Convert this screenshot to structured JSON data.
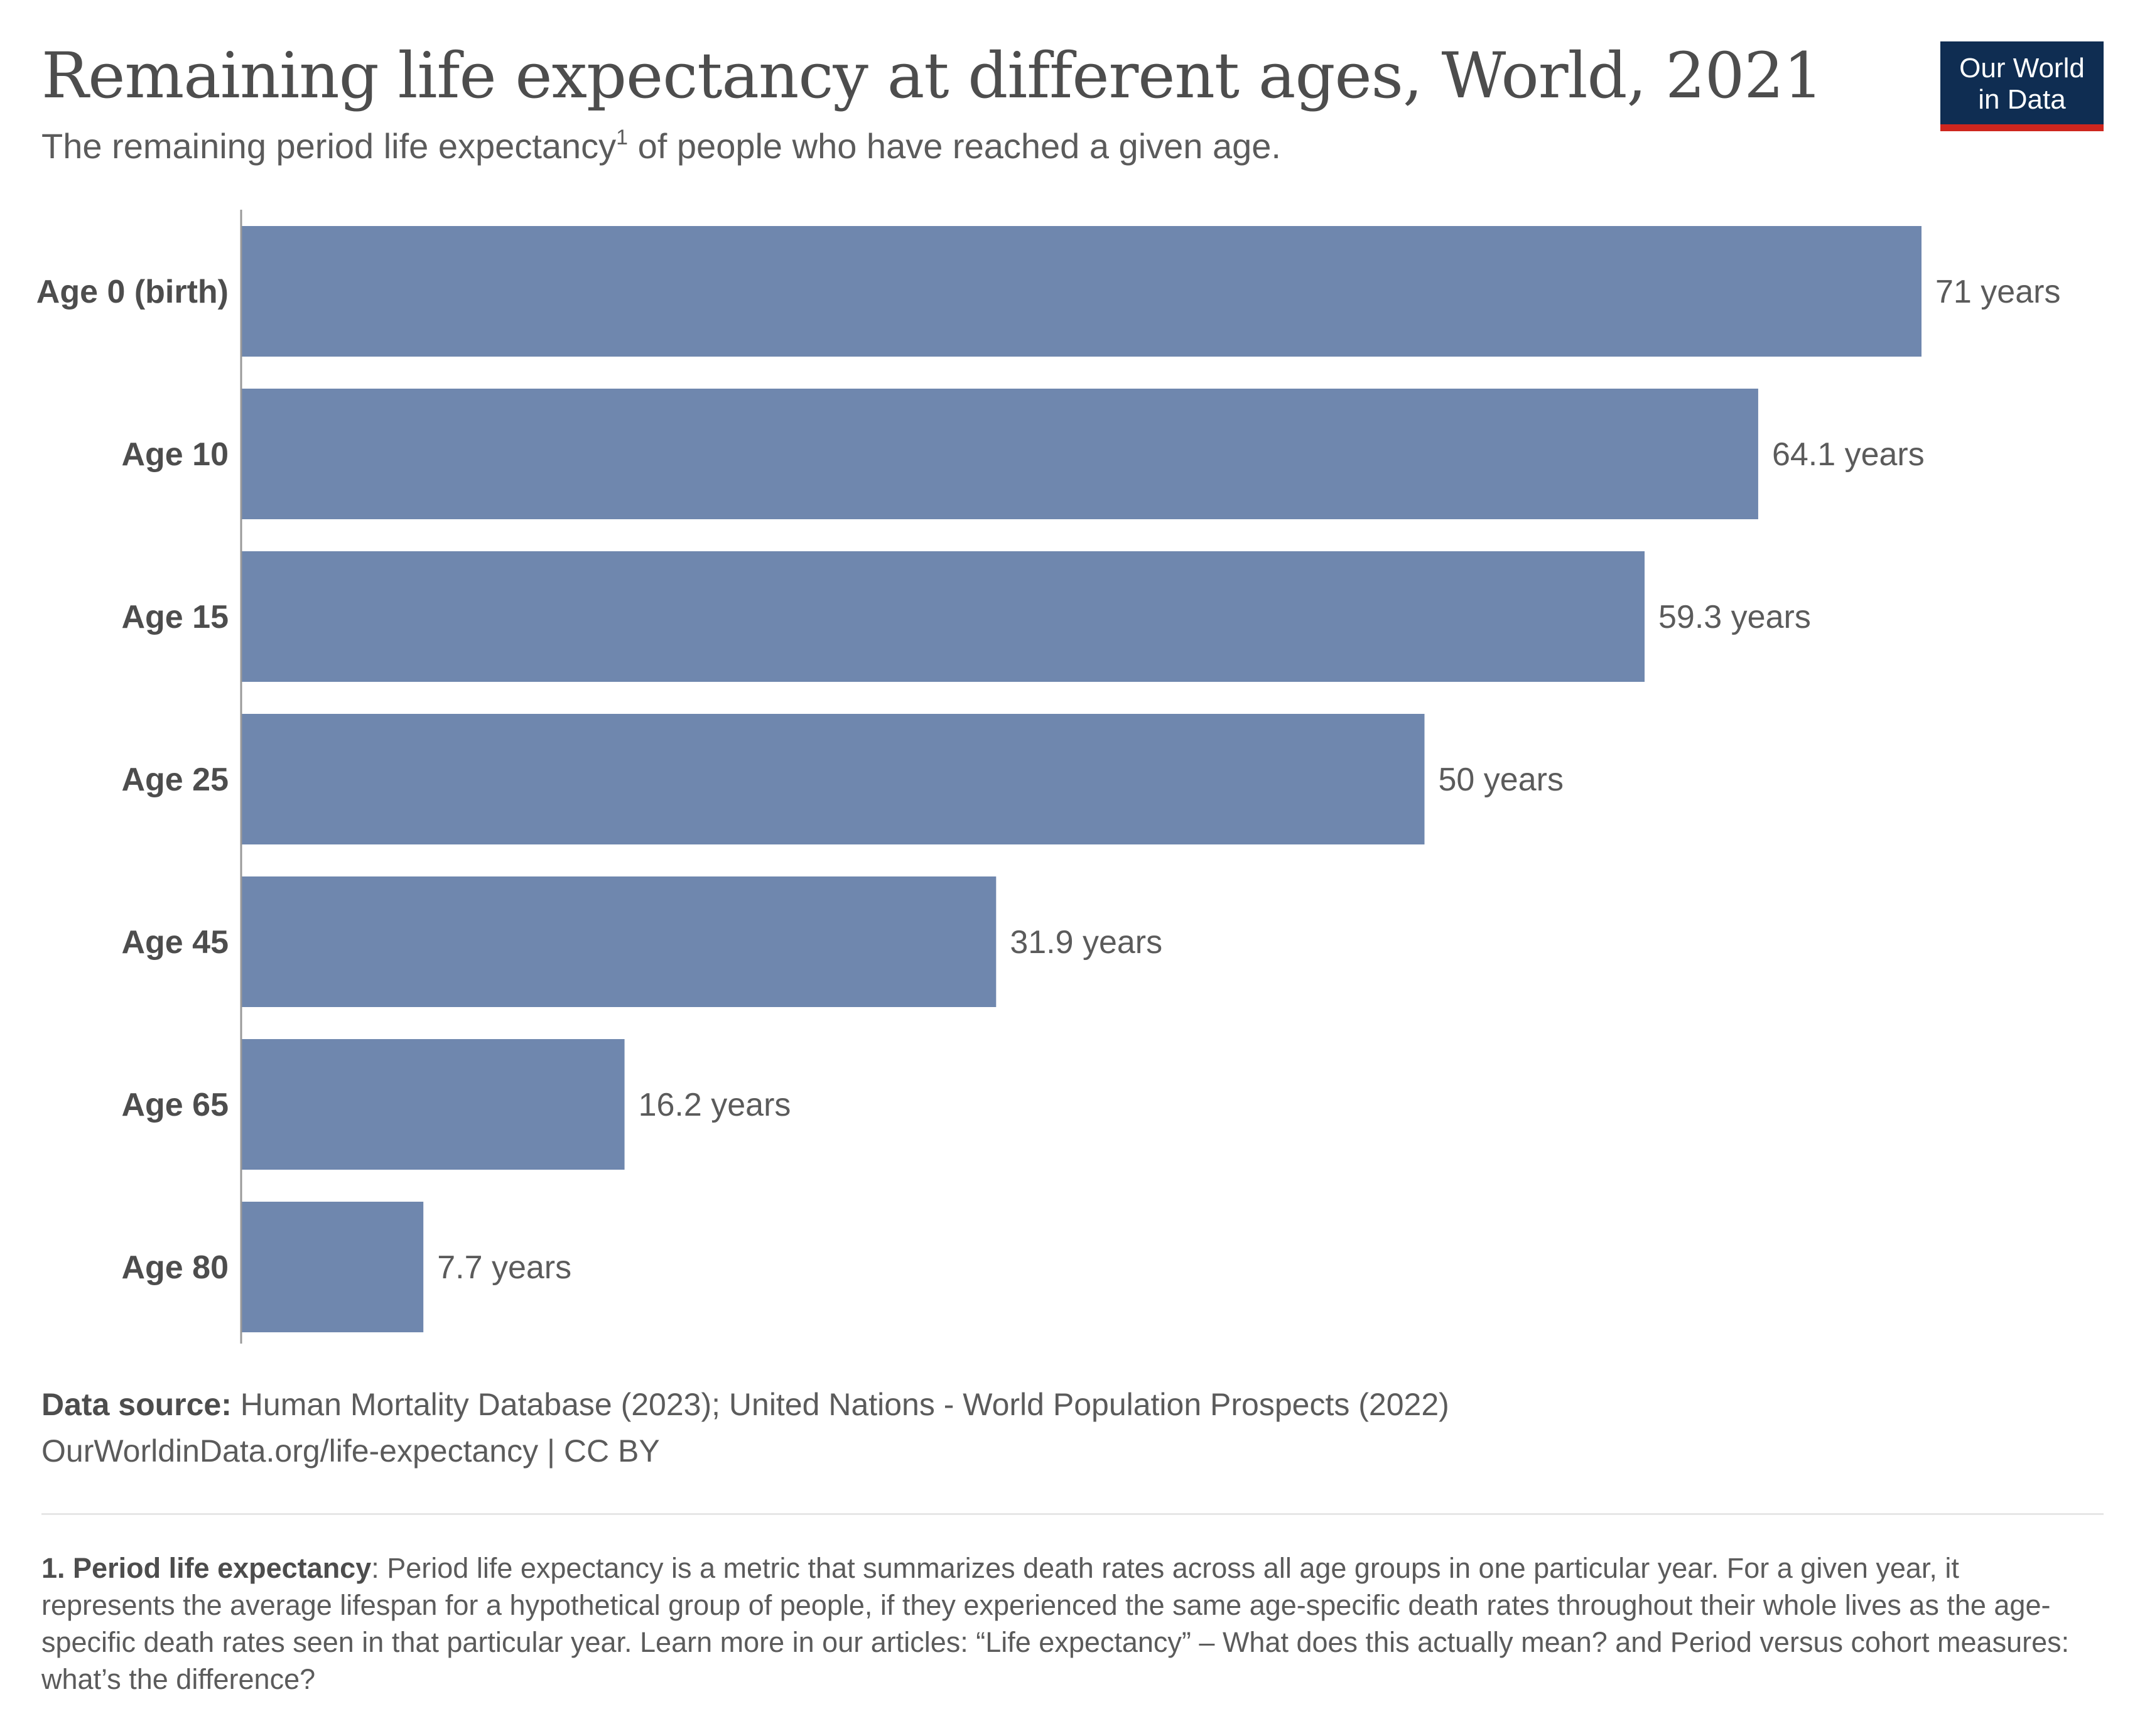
{
  "title": "Remaining life expectancy at different ages, World, 2021",
  "subtitle": {
    "text": "The remaining period life expectancy",
    "marker": "1",
    "text_after": " of people who have reached a given age."
  },
  "logo": {
    "line1": "Our World",
    "line2": "in Data"
  },
  "colors": {
    "bar": "#6f87ae",
    "axis": "#999999",
    "logo_bg": "#0f2d52",
    "logo_accent": "#ce261e"
  },
  "chart_data": {
    "type": "bar",
    "orientation": "horizontal",
    "title": "Remaining life expectancy at different ages, World, 2021",
    "categories": [
      "Age 0 (birth)",
      "Age 10",
      "Age 15",
      "Age 25",
      "Age 45",
      "Age 65",
      "Age 80"
    ],
    "values": [
      71,
      64.1,
      59.3,
      50,
      31.9,
      16.2,
      7.7
    ],
    "value_labels": [
      "71 years",
      "64.1 years",
      "59.3 years",
      "50 years",
      "31.9 years",
      "16.2 years",
      "7.7 years"
    ],
    "unit": "years",
    "xlim": [
      0,
      71
    ],
    "grid": false,
    "legend": "none"
  },
  "source": {
    "label": "Data source:",
    "text": " Human Mortality Database (2023); United Nations - World Population Prospects (2022)",
    "url": "OurWorldinData.org/life-expectancy | CC BY"
  },
  "footnote": {
    "label": "1. Period life expectancy",
    "text": ": Period life expectancy is a metric that summarizes death rates across all age groups in one particular year. For a given year, it represents the average lifespan for a hypothetical group of people, if they experienced the same age-specific death rates throughout their whole lives as the age-specific death rates seen in that particular year. Learn more in our articles: “Life expectancy” – What does this actually mean? and Period versus cohort measures: what’s the difference?"
  }
}
